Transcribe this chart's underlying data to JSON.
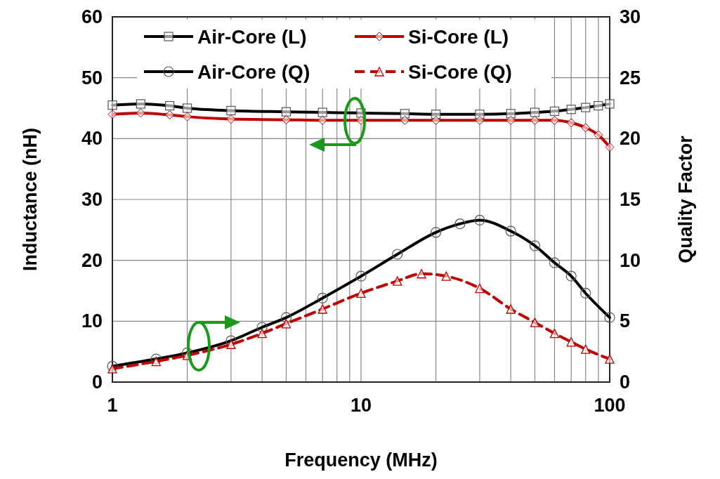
{
  "chart_data": {
    "type": "line",
    "xlabel": "Frequency (MHz)",
    "ylabel": "Inductance (nH)",
    "y2label": "Quality Factor",
    "log": "x",
    "xlim": [
      1,
      100
    ],
    "xticks": [
      1,
      {
        "value": 2,
        "label": null
      },
      {
        "value": 3,
        "label": null
      },
      {
        "value": 4,
        "label": null
      },
      {
        "value": 5,
        "label": null
      },
      {
        "value": 6,
        "label": null
      },
      {
        "value": 7,
        "label": null
      },
      {
        "value": 8,
        "label": null
      },
      {
        "value": 9,
        "label": null
      },
      10,
      {
        "value": 20,
        "label": null
      },
      {
        "value": 30,
        "label": null
      },
      {
        "value": 40,
        "label": null
      },
      {
        "value": 50,
        "label": null
      },
      {
        "value": 60,
        "label": null
      },
      {
        "value": 70,
        "label": null
      },
      {
        "value": 80,
        "label": null
      },
      {
        "value": 90,
        "label": null
      },
      100
    ],
    "ylim": [
      0,
      60
    ],
    "yticks": [
      0,
      10,
      20,
      30,
      40,
      50,
      60
    ],
    "y2lim": [
      0,
      30
    ],
    "y2ticks": [
      0,
      5,
      10,
      15,
      20,
      25,
      30
    ],
    "grid": true,
    "legend": "top",
    "series": [
      {
        "name": "Air-Core (L)",
        "color": "#000000",
        "marker": "square",
        "line_style": "solid",
        "x": [
          1,
          1.3,
          1.7,
          2,
          3,
          5,
          7,
          10,
          15,
          20,
          30,
          40,
          50,
          60,
          70,
          80,
          90,
          100
        ],
        "values": [
          45.5,
          45.7,
          45.4,
          45,
          44.6,
          44.4,
          44.3,
          44.2,
          44.1,
          44,
          44,
          44.1,
          44.3,
          44.5,
          44.8,
          45.1,
          45.4,
          45.7
        ]
      },
      {
        "name": "Si-Core (L)",
        "color": "#c00000",
        "marker": "diamond",
        "line_style": "solid",
        "x": [
          1,
          1.3,
          1.7,
          2,
          3,
          5,
          7,
          10,
          15,
          20,
          30,
          40,
          50,
          60,
          70,
          80,
          90,
          100
        ],
        "values": [
          44,
          44.2,
          43.9,
          43.6,
          43.2,
          43.1,
          43,
          43,
          43,
          43,
          43,
          43,
          43,
          43,
          42.6,
          41.8,
          40.6,
          38.6
        ]
      },
      {
        "name": "Air-Core (Q)",
        "color": "#000000",
        "marker": "circle",
        "line_style": "solid",
        "axis": "y2",
        "x": [
          1,
          1.5,
          2,
          3,
          4,
          5,
          7,
          10,
          14,
          20,
          25,
          30,
          40,
          50,
          60,
          70,
          80,
          100
        ],
        "values": [
          1.3,
          1.9,
          2.4,
          3.4,
          4.5,
          5.3,
          6.9,
          8.7,
          10.5,
          12.3,
          13,
          13.3,
          12.4,
          11.2,
          9.8,
          8.7,
          7.3,
          5.3
        ]
      },
      {
        "name": "Si-Core (Q)",
        "color": "#c00000",
        "marker": "triangle",
        "line_style": "dashed",
        "axis": "y2",
        "x": [
          1,
          1.5,
          2,
          3,
          4,
          5,
          7,
          10,
          14,
          17.5,
          22,
          30,
          40,
          50,
          60,
          70,
          80,
          100
        ],
        "values": [
          1.1,
          1.7,
          2.2,
          3.1,
          4,
          4.8,
          6,
          7.3,
          8.3,
          8.9,
          8.7,
          7.7,
          6,
          4.9,
          4,
          3.3,
          2.7,
          1.9
        ]
      }
    ]
  }
}
